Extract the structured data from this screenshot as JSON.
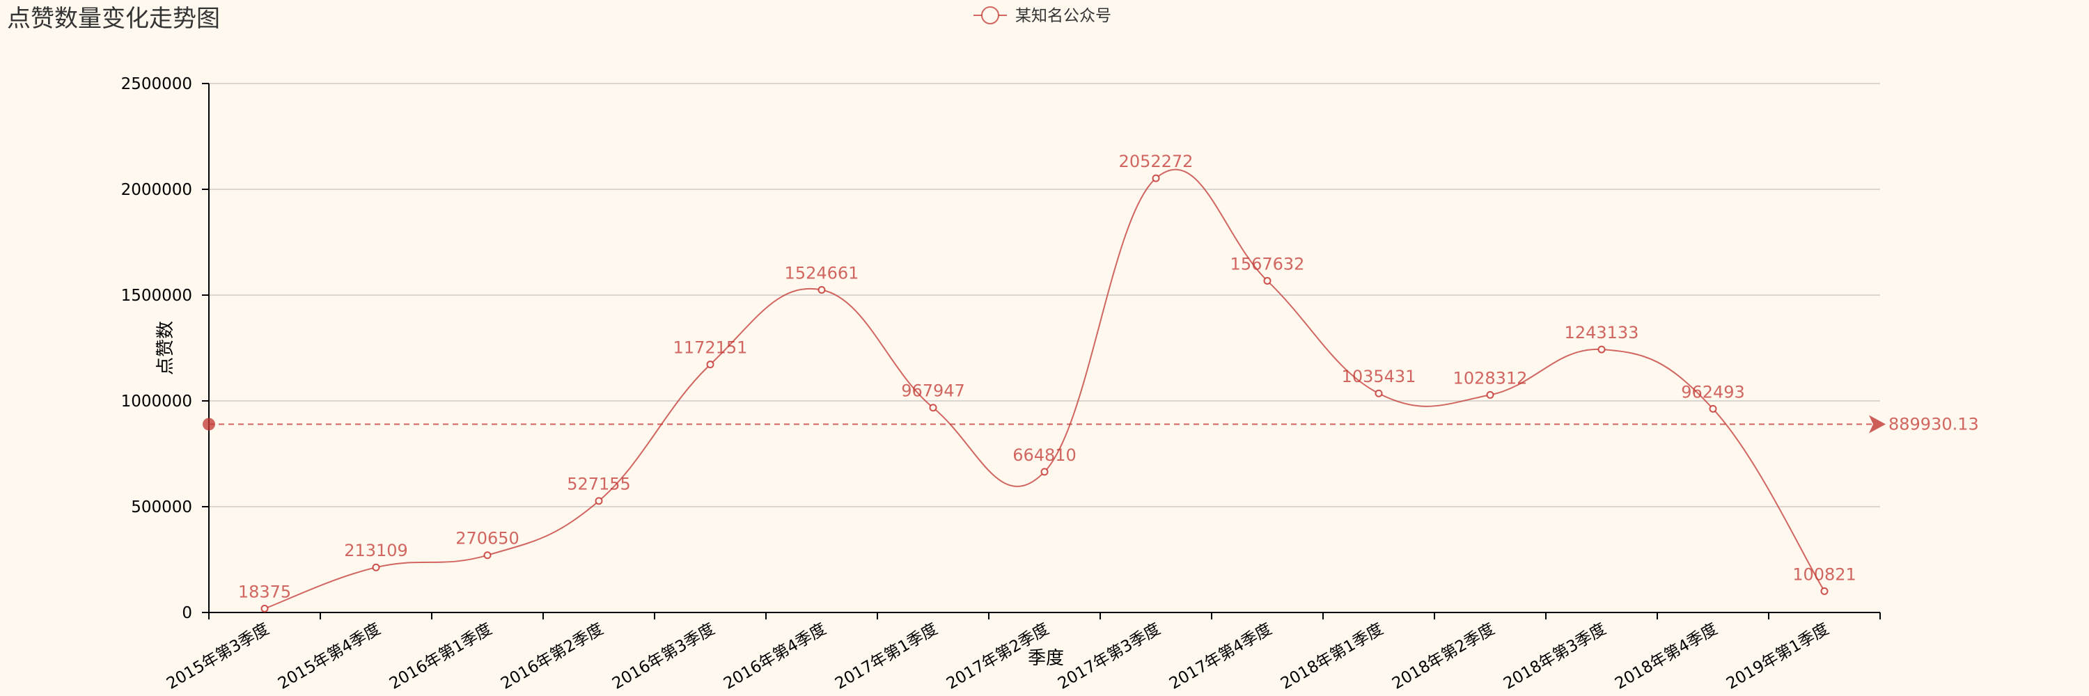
{
  "chart_data": {
    "type": "line",
    "title": "点赞数量变化走势图",
    "xlabel": "季度",
    "ylabel": "点赞数",
    "ylim": [
      0,
      2500000
    ],
    "yticks": [
      0,
      500000,
      1000000,
      1500000,
      2000000,
      2500000
    ],
    "grid": "horizontal",
    "legend_placement": "top-center",
    "smooth": true,
    "colors": {
      "series": "#c23531",
      "background": "#fef8ef",
      "grid": "#cccccc",
      "axis": "#000000"
    },
    "categories": [
      "2015年第3季度",
      "2015年第4季度",
      "2016年第1季度",
      "2016年第2季度",
      "2016年第3季度",
      "2016年第4季度",
      "2017年第1季度",
      "2017年第2季度",
      "2017年第3季度",
      "2017年第4季度",
      "2018年第1季度",
      "2018年第2季度",
      "2018年第3季度",
      "2018年第4季度",
      "2019年第1季度"
    ],
    "series": [
      {
        "name": "某知名公众号",
        "values": [
          18375,
          213109,
          270650,
          527155,
          1172151,
          1524661,
          967947,
          664810,
          2052272,
          1567632,
          1035431,
          1028312,
          1243133,
          962493,
          100821
        ]
      }
    ],
    "mark_line": {
      "type": "average",
      "value": 889930.13,
      "label": "889930.13"
    }
  }
}
